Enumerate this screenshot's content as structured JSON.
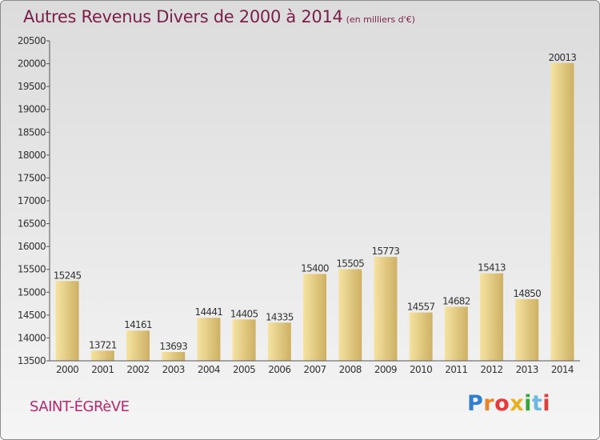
{
  "header": {
    "title": "Autres Revenus Divers de 2000 à 2014",
    "subtitle": "(en milliers d'€)"
  },
  "footer": {
    "commune": "SAINT-ÉGRèVE",
    "brand": "Proxiti",
    "brand_colors": [
      "#2f7fd1",
      "#e8852a",
      "#e23c3c",
      "#e8b21f",
      "#3aa63a",
      "#6db7e0",
      "#e23c3c"
    ]
  },
  "colors": {
    "bar_light": "#f6e3a2",
    "bar_dark": "#cdb063",
    "axis": "#555555",
    "title": "#7a1f4a",
    "commune": "#b5286e"
  },
  "chart_data": {
    "type": "bar",
    "title": "Autres Revenus Divers de 2000 à 2014",
    "subtitle": "(en milliers d'€)",
    "categories": [
      "2000",
      "2001",
      "2002",
      "2003",
      "2004",
      "2005",
      "2006",
      "2007",
      "2008",
      "2009",
      "2010",
      "2011",
      "2012",
      "2013",
      "2014"
    ],
    "values": [
      15245,
      13721,
      14161,
      13693,
      14441,
      14405,
      14335,
      15400,
      15505,
      15773,
      14557,
      14682,
      15413,
      14850,
      20013
    ],
    "ylim": [
      13500,
      20500
    ],
    "yticks": [
      13500,
      14000,
      14500,
      15000,
      15500,
      16000,
      16500,
      17000,
      17500,
      18000,
      18500,
      19000,
      19500,
      20000,
      20500
    ],
    "grid": false,
    "xlabel": "",
    "ylabel": ""
  }
}
